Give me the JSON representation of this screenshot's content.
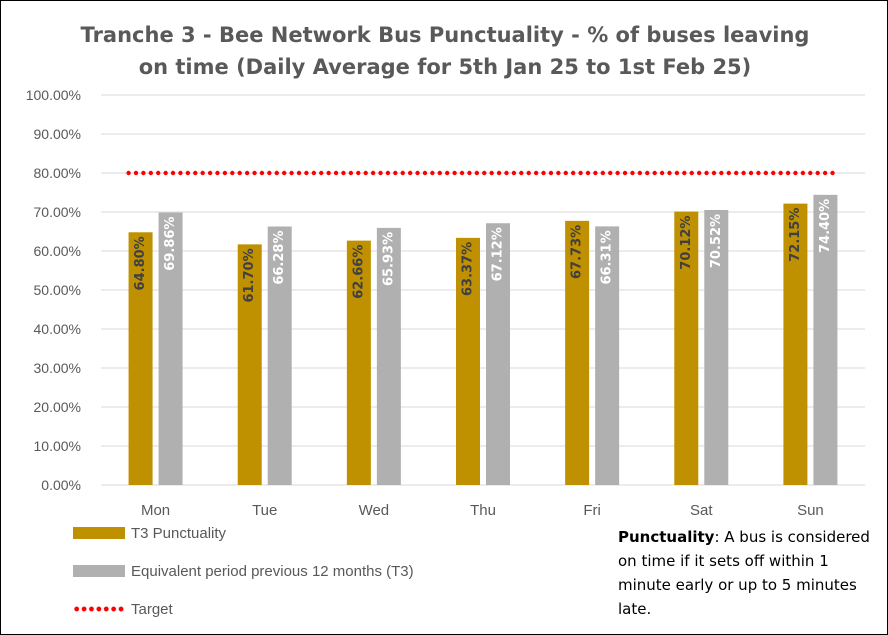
{
  "colors": {
    "t3": "#bf9000",
    "previous": "#b0b0b0",
    "target": "#ff0000",
    "grid": "#d9d9d9",
    "text": "#595959"
  },
  "chart_data": {
    "type": "bar",
    "title_line1": "Tranche 3 - Bee Network Bus Punctuality - % of buses leaving",
    "title_line2": "on time (Daily Average for 5th Jan 25 to 1st Feb 25)",
    "categories": [
      "Mon",
      "Tue",
      "Wed",
      "Thu",
      "Fri",
      "Sat",
      "Sun"
    ],
    "series": [
      {
        "name": "T3 Punctuality",
        "values": [
          64.8,
          61.7,
          62.66,
          63.37,
          67.73,
          70.12,
          72.15
        ],
        "labels": [
          "64.80%",
          "61.70%",
          "62.66%",
          "63.37%",
          "67.73%",
          "70.12%",
          "72.15%"
        ],
        "color": "#bf9000"
      },
      {
        "name": "Equivalent period previous 12 months (T3)",
        "values": [
          69.86,
          66.28,
          65.93,
          67.12,
          66.31,
          70.52,
          74.4
        ],
        "labels": [
          "69.86%",
          "66.28%",
          "65.93%",
          "67.12%",
          "66.31%",
          "70.52%",
          "74.40%"
        ],
        "color": "#b0b0b0"
      }
    ],
    "target": {
      "name": "Target",
      "value": 80,
      "color": "#ff0000"
    },
    "ylim": [
      0,
      100
    ],
    "yticks": [
      0,
      10,
      20,
      30,
      40,
      50,
      60,
      70,
      80,
      90,
      100
    ],
    "ytick_labels": [
      "0.00%",
      "10.00%",
      "20.00%",
      "30.00%",
      "40.00%",
      "50.00%",
      "60.00%",
      "70.00%",
      "80.00%",
      "90.00%",
      "100.00%"
    ],
    "grid": true,
    "legend_position": "bottom-left"
  },
  "note": {
    "term": "Punctuality",
    "text": ": A bus is considered on time if it sets off within 1 minute early or up to 5 minutes late."
  }
}
